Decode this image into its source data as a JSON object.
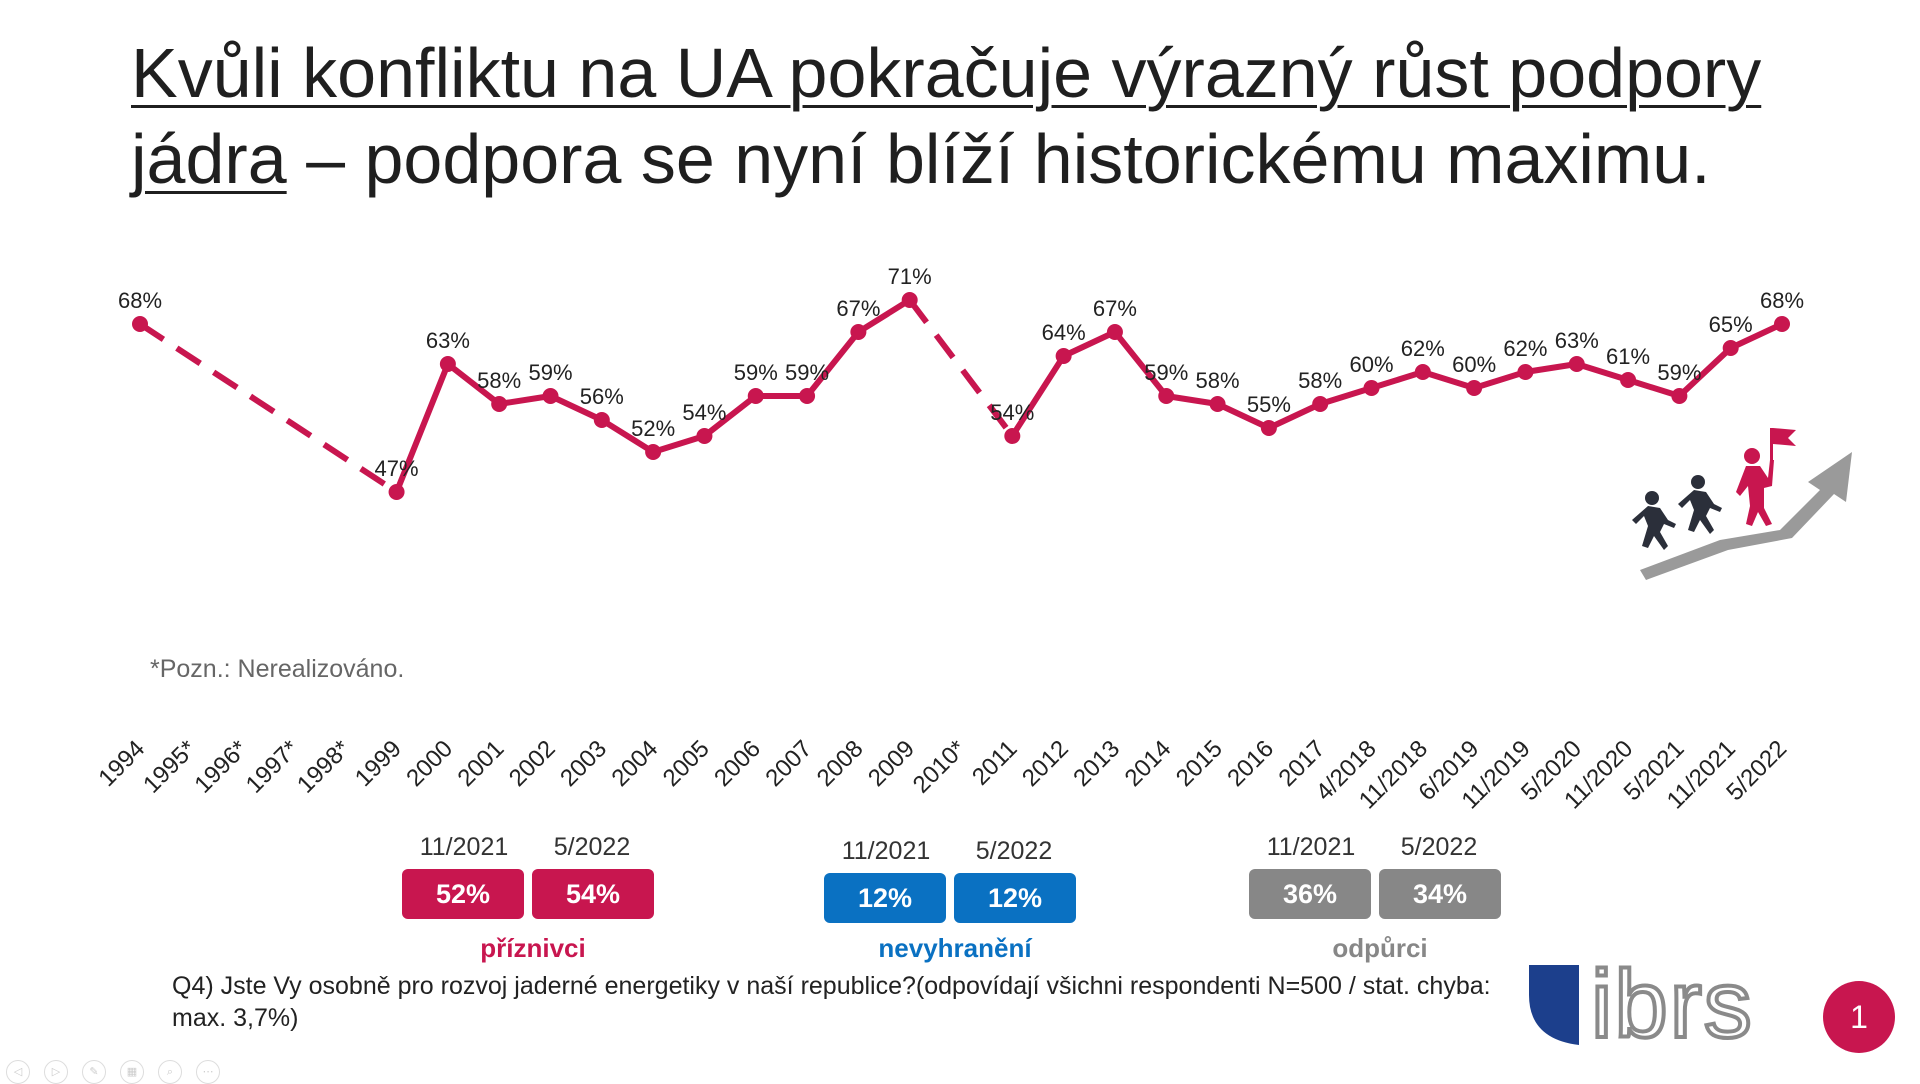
{
  "title": {
    "line1": "Kvůli konfliktu na UA pokračuje výrazný růst podpory",
    "line2_underlined": "jádra",
    "line2_rest": " – podpora se nyní blíží historickému maximu."
  },
  "note": "*Pozn.: Nerealizováno.",
  "colors": {
    "line": "#c8164f",
    "supporters": "#c8164f",
    "undecided": "#0a71c2",
    "opponents": "#878787",
    "arrow": "#999999"
  },
  "chart_data": {
    "type": "line",
    "categories": [
      "1994",
      "1995*",
      "1996*",
      "1997*",
      "1998*",
      "1999",
      "2000",
      "2001",
      "2002",
      "2003",
      "2004",
      "2005",
      "2006",
      "2007",
      "2008",
      "2009",
      "2010*",
      "2011",
      "2012",
      "2013",
      "2014",
      "2015",
      "2016",
      "2017",
      "4/2018",
      "11/2018",
      "6/2019",
      "11/2019",
      "5/2020",
      "11/2020",
      "5/2021",
      "11/2021",
      "5/2022"
    ],
    "series": [
      {
        "values": [
          68,
          null,
          null,
          null,
          null,
          47,
          63,
          58,
          59,
          56,
          52,
          54,
          59,
          59,
          67,
          71,
          null,
          54,
          64,
          67,
          59,
          58,
          55,
          58,
          60,
          62,
          60,
          62,
          63,
          61,
          59,
          65,
          68
        ],
        "labels": [
          "68%",
          "",
          "",
          "",
          "",
          "47%",
          "63%",
          "58%",
          "59%",
          "56%",
          "52%",
          "54%",
          "59%",
          "59%",
          "67%",
          "71%",
          "",
          "54%",
          "64%",
          "67%",
          "59%",
          "58%",
          "55%",
          "58%",
          "60%",
          "62%",
          "60%",
          "62%",
          "63%",
          "61%",
          "59%",
          "65%",
          "68%"
        ]
      }
    ],
    "dashed_gaps": [
      [
        0,
        5
      ],
      [
        15,
        17
      ]
    ],
    "ylim": [
      40,
      75
    ]
  },
  "stats": [
    {
      "label": "příznivci",
      "color": "#c8164f",
      "items": [
        {
          "date": "11/2021",
          "value": "52%"
        },
        {
          "date": "5/2022",
          "value": "54%"
        }
      ]
    },
    {
      "label": "nevyhranění",
      "color": "#0a71c2",
      "items": [
        {
          "date": "11/2021",
          "value": "12%"
        },
        {
          "date": "5/2022",
          "value": "12%"
        }
      ]
    },
    {
      "label": "odpůrci",
      "color": "#878787",
      "items": [
        {
          "date": "11/2021",
          "value": "36%"
        },
        {
          "date": "5/2022",
          "value": "34%"
        }
      ]
    }
  ],
  "question": "Q4) Jste Vy osobně pro rozvoj jaderné energetiky v naší republice?(odpovídají všichni respondenti N=500 / stat. chyba: max. 3,7%)",
  "logo_text": "ibrs",
  "page_number": "1",
  "illustration_icon": "people-climbing-arrow-icon"
}
